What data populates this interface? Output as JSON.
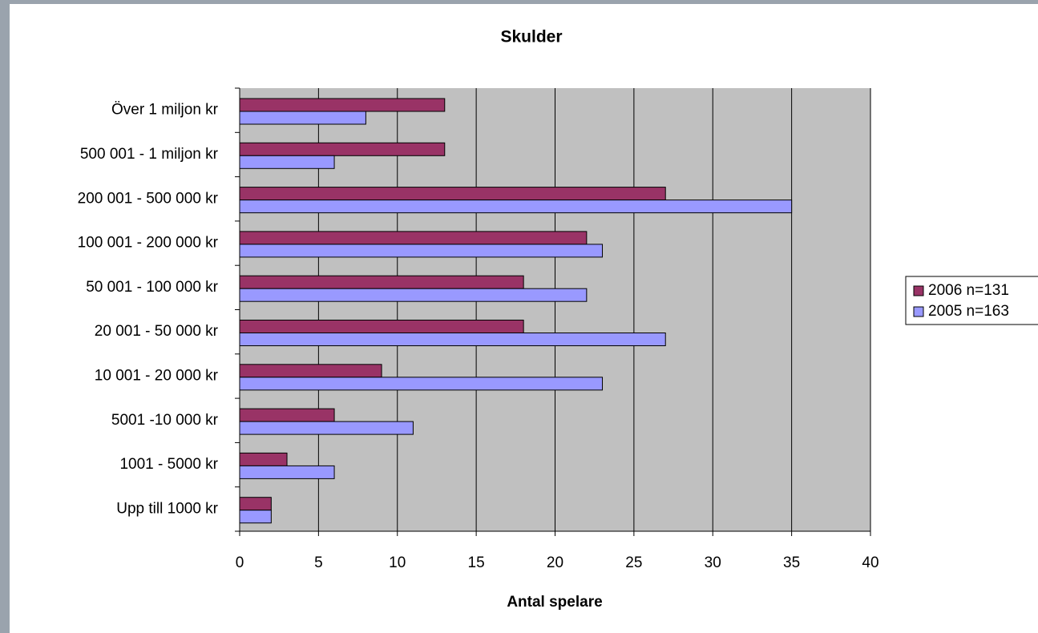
{
  "chart_data": {
    "type": "hbar",
    "title": "Skulder",
    "x_label": "Antal spelare",
    "categories": [
      "Över 1 miljon kr",
      "500 001 - 1 miljon kr",
      "200 001 - 500 000 kr",
      "100 001 - 200 000 kr",
      "50 001 - 100 000 kr",
      "20 001 - 50 000 kr",
      "10 001 - 20 000 kr",
      "5001 -10 000 kr",
      "1001 - 5000 kr",
      "Upp till 1000 kr"
    ],
    "series": [
      {
        "name": "2006 n=131",
        "color": "#993366",
        "values": [
          13,
          13,
          27,
          22,
          18,
          18,
          9,
          6,
          3,
          2
        ]
      },
      {
        "name": "2005 n=163",
        "color": "#9999ff",
        "values": [
          8,
          6,
          35,
          23,
          22,
          27,
          23,
          11,
          6,
          2
        ]
      }
    ],
    "xlim": [
      0,
      40
    ],
    "xticks": [
      0,
      5,
      10,
      15,
      20,
      25,
      30,
      35,
      40
    ],
    "grid": true,
    "legend": "right"
  }
}
